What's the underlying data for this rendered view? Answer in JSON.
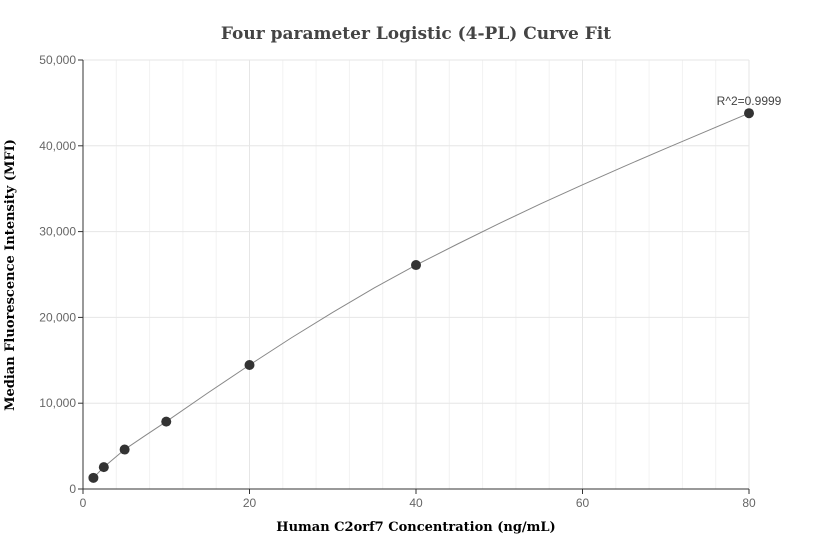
{
  "chart_data": {
    "type": "scatter",
    "title": "Four parameter Logistic (4-PL) Curve Fit",
    "xlabel": "Human C2orf7 Concentration (ng/mL)",
    "ylabel": "Median Fluorescence Intensity (MFI)",
    "xlim": [
      0,
      80
    ],
    "ylim": [
      0,
      50000
    ],
    "xticks": [
      0,
      20,
      40,
      60,
      80
    ],
    "yticks": [
      0,
      10000,
      20000,
      30000,
      40000,
      50000
    ],
    "ytick_labels": [
      "0",
      "10,000",
      "20,000",
      "30,000",
      "40,000",
      "50,000"
    ],
    "grid": true,
    "annotation": "R^2=0.9999",
    "series": [
      {
        "points": [
          {
            "x": 1.25,
            "y": 1300
          },
          {
            "x": 2.5,
            "y": 2550
          },
          {
            "x": 5,
            "y": 4600
          },
          {
            "x": 10,
            "y": 7850
          },
          {
            "x": 20,
            "y": 14450
          },
          {
            "x": 40,
            "y": 26100
          },
          {
            "x": 80,
            "y": 43800
          }
        ],
        "color": "#333333"
      }
    ],
    "fit_curve": {
      "model": "4PL",
      "color": "#888888",
      "x": [
        1.25,
        2.5,
        5,
        7.5,
        10,
        15,
        20,
        25,
        30,
        35,
        40,
        45,
        50,
        55,
        60,
        65,
        70,
        75,
        80
      ],
      "y": [
        1300,
        2550,
        4600,
        6250,
        7850,
        11200,
        14450,
        17600,
        20600,
        23450,
        26100,
        28550,
        30950,
        33250,
        35450,
        37600,
        39700,
        41750,
        43800
      ]
    }
  }
}
